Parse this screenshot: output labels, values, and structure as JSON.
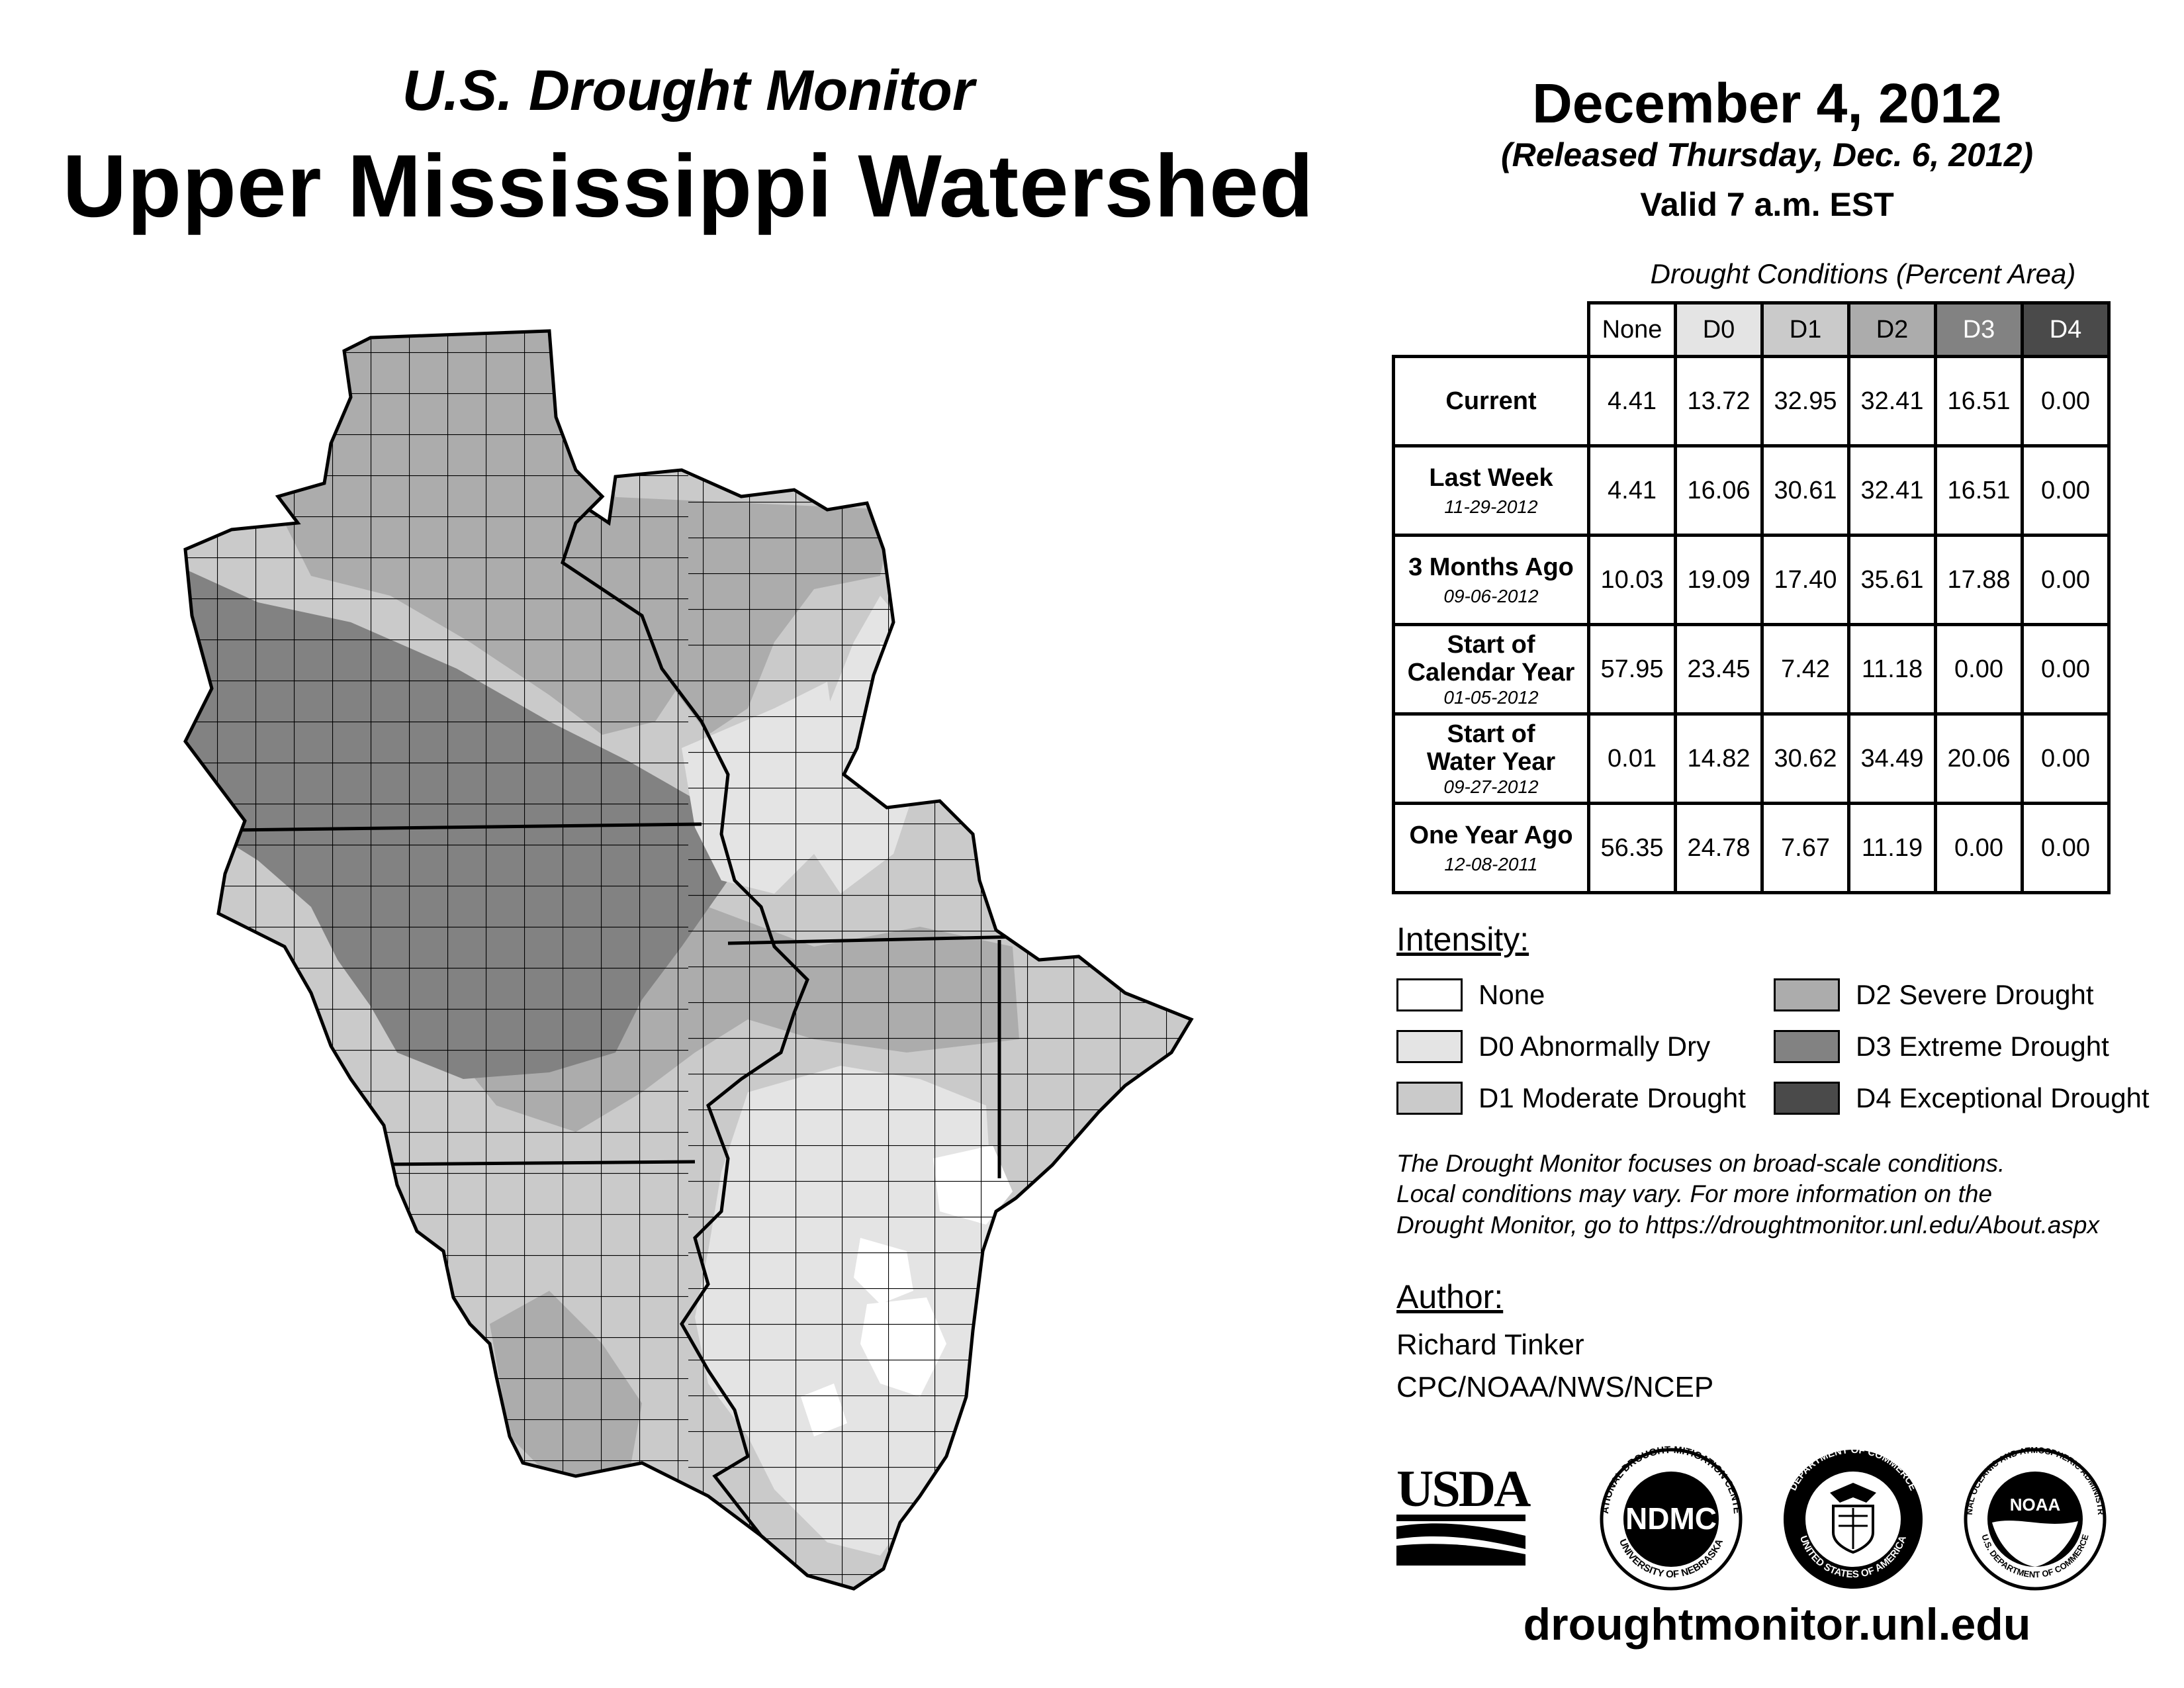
{
  "header": {
    "subtitle": "U.S. Drought Monitor",
    "title": "Upper Mississippi Watershed",
    "date": "December 4, 2012",
    "released": "(Released Thursday, Dec. 6, 2012)",
    "valid": "Valid 7 a.m. EST"
  },
  "table": {
    "title": "Drought Conditions (Percent Area)",
    "columns": [
      "None",
      "D0",
      "D1",
      "D2",
      "D3",
      "D4"
    ],
    "rows": [
      {
        "label1": "Current",
        "label2": "",
        "date": "",
        "values": [
          "4.41",
          "13.72",
          "32.95",
          "32.41",
          "16.51",
          "0.00"
        ]
      },
      {
        "label1": "Last Week",
        "label2": "",
        "date": "11-29-2012",
        "values": [
          "4.41",
          "16.06",
          "30.61",
          "32.41",
          "16.51",
          "0.00"
        ]
      },
      {
        "label1": "3 Months Ago",
        "label2": "",
        "date": "09-06-2012",
        "values": [
          "10.03",
          "19.09",
          "17.40",
          "35.61",
          "17.88",
          "0.00"
        ]
      },
      {
        "label1": "Start of",
        "label2": "Calendar Year",
        "date": "01-05-2012",
        "values": [
          "57.95",
          "23.45",
          "7.42",
          "11.18",
          "0.00",
          "0.00"
        ]
      },
      {
        "label1": "Start of",
        "label2": "Water Year",
        "date": "09-27-2012",
        "values": [
          "0.01",
          "14.82",
          "30.62",
          "34.49",
          "20.06",
          "0.00"
        ]
      },
      {
        "label1": "One Year Ago",
        "label2": "",
        "date": "12-08-2011",
        "values": [
          "56.35",
          "24.78",
          "7.67",
          "11.19",
          "0.00",
          "0.00"
        ]
      }
    ]
  },
  "legend": {
    "label": "Intensity:",
    "items": [
      {
        "label": "None",
        "color": "#ffffff"
      },
      {
        "label": "D0 Abnormally Dry",
        "color": "#e4e4e4"
      },
      {
        "label": "D1 Moderate Drought",
        "color": "#cacaca"
      },
      {
        "label": "D2 Severe Drought",
        "color": "#acacac"
      },
      {
        "label": "D3 Extreme Drought",
        "color": "#828282"
      },
      {
        "label": "D4 Exceptional Drought",
        "color": "#4a4a4a"
      }
    ]
  },
  "note": {
    "line1": "The Drought Monitor focuses on broad-scale conditions.",
    "line2": "Local conditions may vary. For more information on the",
    "line3": "Drought Monitor, go to https://droughtmonitor.unl.edu/About.aspx"
  },
  "author": {
    "label": "Author:",
    "name": "Richard Tinker",
    "org": "CPC/NOAA/NWS/NCEP"
  },
  "logos": {
    "usda": "USDA",
    "ndmc": "NDMC",
    "ndmc_ring_top": "NATIONAL DROUGHT MITIGATION CENTER",
    "ndmc_ring_bottom": "UNIVERSITY OF NEBRASKA",
    "doc_ring_top": "DEPARTMENT OF COMMERCE",
    "doc_ring_bottom": "UNITED STATES OF AMERICA",
    "noaa": "NOAA",
    "noaa_ring_top": "NATIONAL OCEANIC AND ATMOSPHERIC ADMINISTRATION",
    "noaa_ring_bottom": "U.S. DEPARTMENT OF COMMERCE"
  },
  "footer": {
    "url": "droughtmonitor.unl.edu"
  }
}
